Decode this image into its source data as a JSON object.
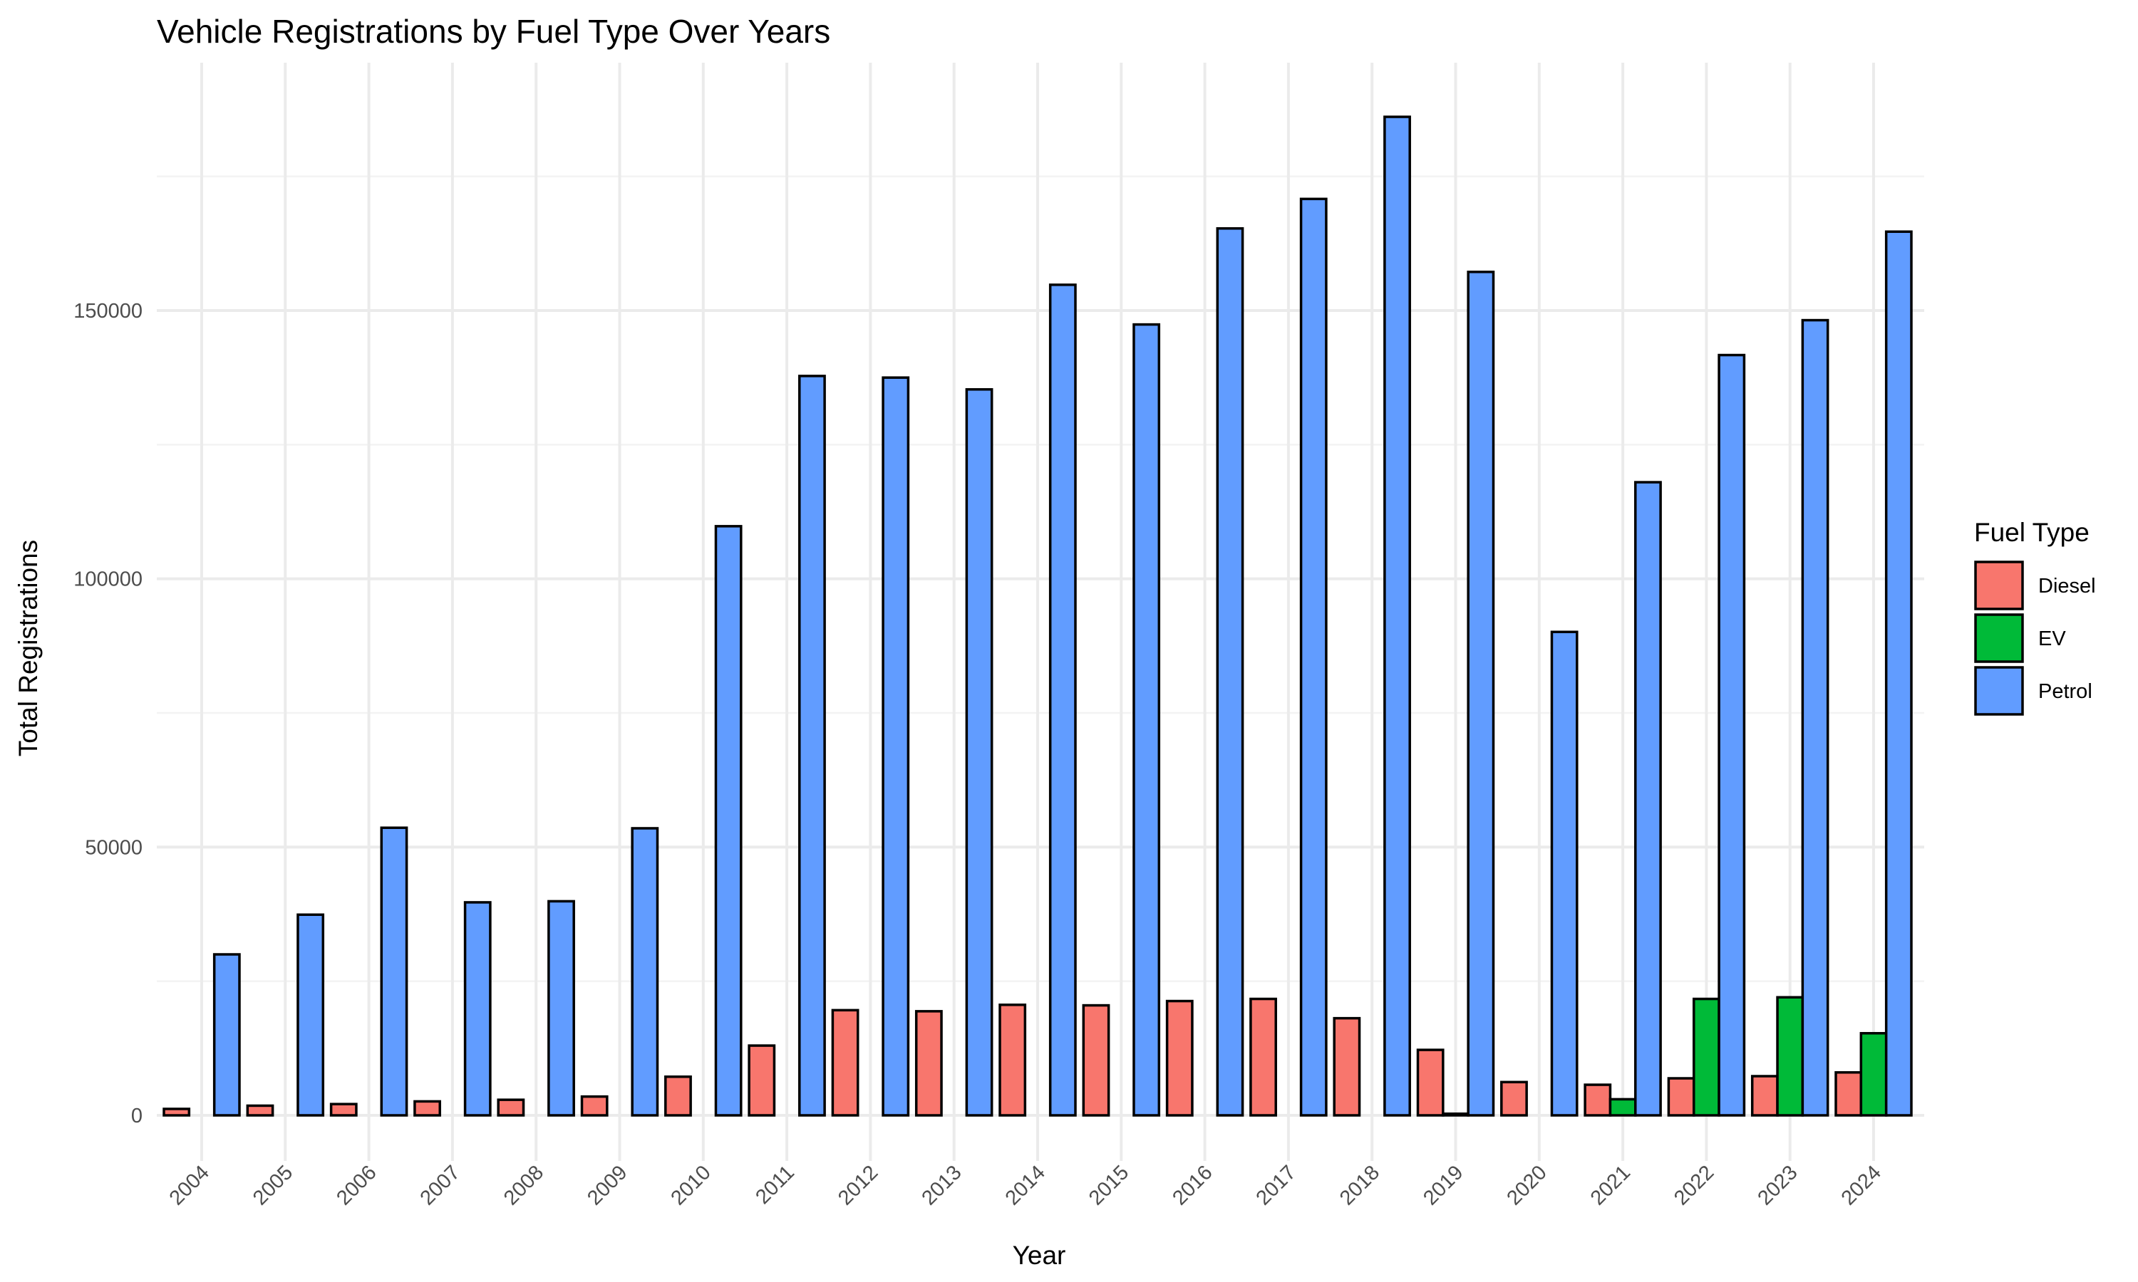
{
  "chart_data": {
    "type": "bar",
    "title": "Vehicle Registrations by Fuel Type Over Years",
    "xlabel": "Year",
    "ylabel": "Total Registrations",
    "categories": [
      "2004",
      "2005",
      "2006",
      "2007",
      "2008",
      "2009",
      "2010",
      "2011",
      "2012",
      "2013",
      "2014",
      "2015",
      "2016",
      "2017",
      "2018",
      "2019",
      "2020",
      "2021",
      "2022",
      "2023",
      "2024"
    ],
    "ylim": [
      -8000,
      196000
    ],
    "yticks": [
      0,
      50000,
      100000,
      150000
    ],
    "ytick_labels": [
      "0",
      "50000",
      "100000",
      "150000"
    ],
    "grid": true,
    "legend": {
      "title": "Fuel Type",
      "position": "right"
    },
    "series": [
      {
        "name": "Diesel",
        "color": "#F8766D",
        "values": [
          1200,
          1800,
          2100,
          2600,
          2900,
          3500,
          7200,
          13000,
          19600,
          19400,
          20600,
          20500,
          21300,
          21700,
          18100,
          12200,
          6200,
          5700,
          6900,
          7300,
          8000
        ]
      },
      {
        "name": "EV",
        "color": "#00BA38",
        "values": [
          0,
          0,
          0,
          0,
          0,
          0,
          0,
          0,
          0,
          0,
          0,
          0,
          0,
          0,
          0,
          300,
          0,
          3000,
          21700,
          22000,
          15300
        ]
      },
      {
        "name": "Petrol",
        "color": "#619CFF",
        "values": [
          30000,
          37400,
          53600,
          39700,
          39900,
          53500,
          109800,
          137800,
          137500,
          135300,
          154800,
          147400,
          165300,
          170800,
          186100,
          157200,
          90100,
          118000,
          141700,
          148200,
          164700
        ]
      }
    ]
  }
}
